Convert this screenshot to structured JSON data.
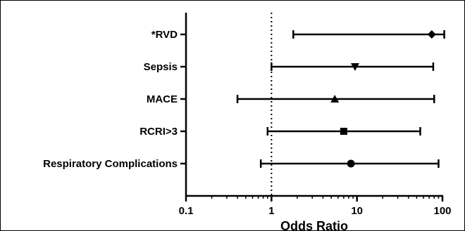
{
  "chart_data": {
    "type": "forest",
    "xlabel": "Odds Ratio",
    "x_scale": "log",
    "xlim": [
      0.1,
      100
    ],
    "x_ticks": [
      "0.1",
      "1",
      "10",
      "100"
    ],
    "x_tick_values": [
      0.1,
      1,
      10,
      100
    ],
    "reference_line": {
      "x": 1,
      "style": "dotted"
    },
    "grid": false,
    "rows": [
      {
        "label": "*RVD",
        "estimate": 75,
        "ci_low": 1.8,
        "ci_high": 105,
        "marker": "diamond"
      },
      {
        "label": "Sepsis",
        "estimate": 9.5,
        "ci_low": 1.0,
        "ci_high": 78,
        "marker": "triangle-down"
      },
      {
        "label": "MACE",
        "estimate": 5.5,
        "ci_low": 0.4,
        "ci_high": 80,
        "marker": "triangle-up"
      },
      {
        "label": "RCRI>3",
        "estimate": 7.0,
        "ci_low": 0.9,
        "ci_high": 55,
        "marker": "square"
      },
      {
        "label": "Respiratory Complications",
        "estimate": 8.5,
        "ci_low": 0.75,
        "ci_high": 90,
        "marker": "circle"
      }
    ]
  }
}
